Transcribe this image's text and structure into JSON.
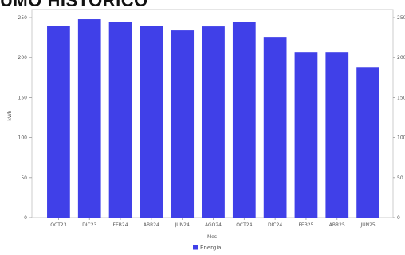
{
  "page": {
    "heading": "UMO HISTORICO"
  },
  "chart_data": {
    "type": "bar",
    "categories": [
      "OCT23",
      "DIC23",
      "FEB24",
      "ABR24",
      "JUN24",
      "AGO24",
      "OCT24",
      "DIC24",
      "FEB25",
      "ABR25",
      "JUN25"
    ],
    "series": [
      {
        "name": "Energía",
        "color": "#4040e8",
        "values": [
          240,
          248,
          245,
          240,
          234,
          239,
          245,
          225,
          207,
          207,
          188
        ]
      }
    ],
    "xlabel": "Mes",
    "ylabel": "kWh",
    "ylim": [
      0,
      260
    ],
    "yticks": [
      0,
      50,
      100,
      150,
      200,
      250
    ],
    "y2_ticks": [
      0,
      50,
      100,
      150,
      200,
      250
    ],
    "grid": false,
    "legend_position": "bottom-center"
  }
}
